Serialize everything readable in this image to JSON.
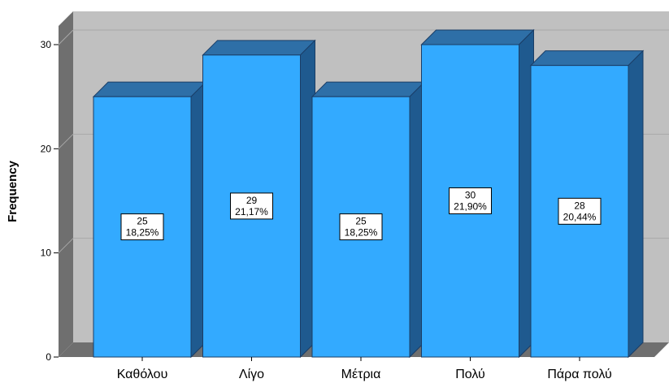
{
  "chart_data": {
    "type": "bar",
    "title": "",
    "xlabel": "",
    "ylabel": "Frequency",
    "categories": [
      "Καθόλου",
      "Λίγο",
      "Μέτρια",
      "Πολύ",
      "Πάρα πολύ"
    ],
    "values": [
      25,
      29,
      25,
      30,
      28
    ],
    "percent_labels": [
      "18,25%",
      "21,17%",
      "18,25%",
      "21,90%",
      "20,44%"
    ],
    "ylim": [
      0,
      30
    ],
    "yticks": [
      0,
      10,
      20,
      30
    ],
    "grid": true,
    "style": "3d",
    "colors": {
      "bar_front": "#33aaff",
      "bar_top": "#2e6fa7",
      "bar_side": "#1f5a8f",
      "bar_edge": "#1a3d66",
      "back_wall": "#c0c0c0",
      "side_wall": "#6f6f6f",
      "floor": "#6f6f6f",
      "gridline": "#a8a8a8",
      "label_box": "#ffffff"
    }
  }
}
